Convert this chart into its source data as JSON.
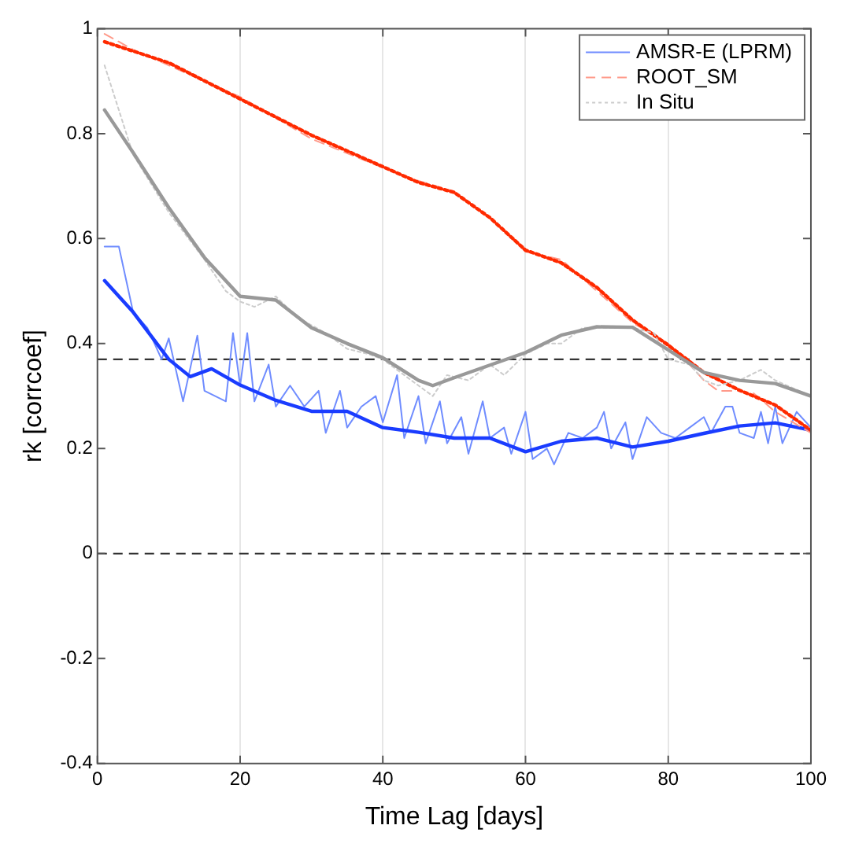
{
  "chart_data": {
    "type": "line",
    "xlabel": "Time Lag [days]",
    "ylabel": "rk [corrcoef]",
    "xlim": [
      0,
      100
    ],
    "xticks": [
      0,
      20,
      40,
      60,
      80,
      100
    ],
    "ylim": [
      -0.4,
      1
    ],
    "yticks": [
      -0.4,
      -0.2,
      0,
      0.2,
      0.4,
      0.6,
      0.8,
      1
    ],
    "grid": "x",
    "legend": "top right",
    "marker": "none",
    "ref_lines": [
      {
        "axis": "y",
        "value": 0.37,
        "color": "#333333",
        "line_style": "dashed"
      },
      {
        "axis": "y",
        "value": 0,
        "color": "#333333",
        "line_style": "dashed"
      }
    ],
    "series": [
      {
        "name": "AMSR-E (LPRM)",
        "color": "#6f8cff",
        "line_style": "solid",
        "x": [
          1,
          3,
          5,
          7,
          9,
          10,
          12,
          14,
          15,
          18,
          19,
          20,
          21,
          22,
          24,
          25,
          27,
          29,
          31,
          32,
          34,
          35,
          37,
          39,
          40,
          42,
          43,
          45,
          46,
          48,
          49,
          51,
          52,
          54,
          55,
          57,
          58,
          60,
          61,
          63,
          64,
          66,
          68,
          70,
          71,
          72,
          74,
          75,
          77,
          79,
          81,
          83,
          85,
          86,
          88,
          89,
          90,
          92,
          93,
          94,
          95,
          96,
          98,
          100
        ],
        "values": [
          0.585,
          0.585,
          0.46,
          0.43,
          0.37,
          0.41,
          0.29,
          0.415,
          0.31,
          0.29,
          0.42,
          0.32,
          0.42,
          0.29,
          0.36,
          0.28,
          0.32,
          0.28,
          0.31,
          0.23,
          0.31,
          0.24,
          0.28,
          0.3,
          0.25,
          0.34,
          0.22,
          0.3,
          0.21,
          0.29,
          0.21,
          0.26,
          0.19,
          0.29,
          0.22,
          0.24,
          0.19,
          0.27,
          0.18,
          0.2,
          0.17,
          0.23,
          0.22,
          0.24,
          0.27,
          0.2,
          0.25,
          0.18,
          0.26,
          0.23,
          0.22,
          0.24,
          0.26,
          0.23,
          0.28,
          0.28,
          0.23,
          0.22,
          0.27,
          0.21,
          0.28,
          0.21,
          0.27,
          0.24
        ]
      },
      {
        "color": "#1a3cff",
        "line_style": "solid",
        "x": [
          1,
          5,
          10,
          13,
          16,
          20,
          25,
          30,
          35,
          40,
          45,
          50,
          55,
          60,
          65,
          70,
          75,
          80,
          85,
          90,
          95,
          100
        ],
        "values": [
          0.52,
          0.46,
          0.37,
          0.337,
          0.352,
          0.321,
          0.292,
          0.271,
          0.271,
          0.24,
          0.231,
          0.22,
          0.22,
          0.194,
          0.214,
          0.22,
          0.203,
          0.214,
          0.229,
          0.243,
          0.249,
          0.235
        ]
      },
      {
        "name": "ROOT_SM",
        "color": "#ff9a8a",
        "line_style": "dashed",
        "x": [
          1,
          5,
          10,
          20,
          30,
          40,
          45,
          50,
          55,
          60,
          65,
          70,
          75,
          80,
          83,
          85,
          87,
          90,
          92,
          95,
          100
        ],
        "values": [
          0.99,
          0.96,
          0.93,
          0.87,
          0.79,
          0.735,
          0.71,
          0.69,
          0.64,
          0.575,
          0.56,
          0.5,
          0.44,
          0.4,
          0.36,
          0.33,
          0.31,
          0.31,
          0.305,
          0.27,
          0.23
        ]
      },
      {
        "color": "#ff2a00",
        "line_style": "dotted",
        "x": [
          1,
          10,
          20,
          30,
          40,
          45,
          50,
          55,
          60,
          65,
          70,
          75,
          80,
          85,
          90,
          95,
          100
        ],
        "values": [
          0.975,
          0.935,
          0.866,
          0.797,
          0.737,
          0.707,
          0.688,
          0.64,
          0.578,
          0.554,
          0.507,
          0.445,
          0.397,
          0.345,
          0.311,
          0.283,
          0.235
        ]
      },
      {
        "name": "In Situ",
        "color": "#cccccc",
        "line_style": "dotted",
        "x": [
          1,
          5,
          10,
          15,
          18,
          20,
          22,
          25,
          28,
          32,
          35,
          38,
          40,
          43,
          45,
          47,
          49,
          52,
          55,
          57,
          60,
          63,
          65,
          68,
          72,
          75,
          78,
          80,
          83,
          85,
          87,
          90,
          93,
          95,
          100
        ],
        "values": [
          0.93,
          0.76,
          0.65,
          0.56,
          0.5,
          0.48,
          0.47,
          0.49,
          0.45,
          0.42,
          0.39,
          0.38,
          0.37,
          0.34,
          0.32,
          0.3,
          0.34,
          0.33,
          0.36,
          0.34,
          0.38,
          0.4,
          0.4,
          0.43,
          0.43,
          0.43,
          0.42,
          0.37,
          0.36,
          0.33,
          0.32,
          0.33,
          0.35,
          0.33,
          0.3
        ]
      },
      {
        "color": "#999999",
        "line_style": "solid",
        "x": [
          1,
          5,
          10,
          15,
          20,
          25,
          30,
          35,
          40,
          45,
          47,
          50,
          55,
          60,
          65,
          70,
          75,
          80,
          85,
          90,
          95,
          100
        ],
        "values": [
          0.845,
          0.764,
          0.659,
          0.564,
          0.49,
          0.483,
          0.43,
          0.4,
          0.373,
          0.33,
          0.32,
          0.335,
          0.359,
          0.383,
          0.416,
          0.432,
          0.431,
          0.388,
          0.345,
          0.33,
          0.324,
          0.3
        ]
      }
    ]
  }
}
